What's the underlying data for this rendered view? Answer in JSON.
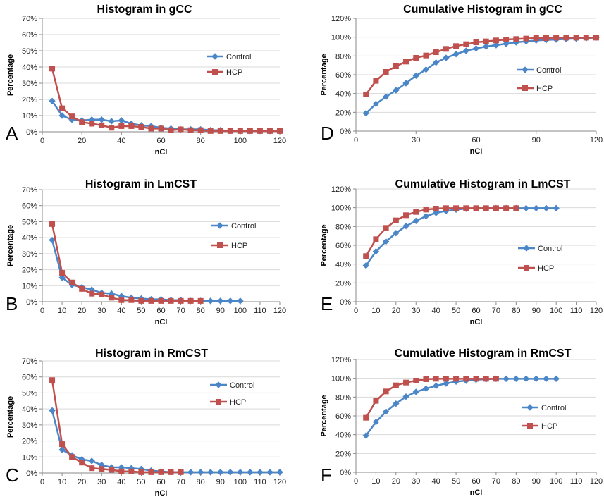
{
  "colors": {
    "control": "#4a86c8",
    "hcp": "#c0504d",
    "grid": "#d9d9d9",
    "axis": "#888888"
  },
  "chart_data": [
    {
      "panel_letter": "A",
      "type": "line",
      "title": "Histogram in gCC",
      "xlabel": "nCI",
      "ylabel": "Percentage",
      "xlim": [
        0,
        120
      ],
      "xticks": [
        "0",
        "20",
        "40",
        "60",
        "80",
        "100",
        "120"
      ],
      "ylim": [
        0,
        70
      ],
      "yticks": [
        "0%",
        "10%",
        "20%",
        "30%",
        "40%",
        "50%",
        "60%",
        "70%"
      ],
      "legend": "top-right",
      "series": [
        {
          "name": "Control",
          "marker": "diamond",
          "x": [
            5,
            10,
            15,
            20,
            25,
            30,
            35,
            40,
            45,
            50,
            55,
            60,
            65,
            70,
            75,
            80,
            85,
            90,
            95,
            100,
            105,
            110,
            115,
            120
          ],
          "y": [
            19,
            10,
            7.5,
            7,
            7.5,
            7.5,
            6.5,
            7,
            5,
            4,
            3.5,
            2.5,
            2,
            1.5,
            1.5,
            1.5,
            1,
            1,
            0.5,
            0.5,
            0.5,
            0.5,
            0.5,
            0.5
          ]
        },
        {
          "name": "HCP",
          "marker": "square",
          "x": [
            5,
            10,
            15,
            20,
            25,
            30,
            35,
            40,
            45,
            50,
            55,
            60,
            65,
            70,
            75,
            80,
            85,
            90,
            95,
            100,
            105,
            110,
            115,
            120
          ],
          "y": [
            39,
            14.5,
            9.5,
            6,
            5,
            4,
            2.5,
            3.5,
            3.5,
            3,
            2,
            2,
            1,
            1.5,
            1,
            1,
            0.5,
            0.5,
            0.5,
            0.5,
            0.5,
            0.5,
            0.5,
            0.5
          ]
        }
      ]
    },
    {
      "panel_letter": "D",
      "type": "line",
      "title": "Cumulative Histogram in gCC",
      "xlabel": "nCI",
      "ylabel": "Percentage",
      "xlim": [
        0,
        120
      ],
      "xticks": [
        "0",
        "30",
        "60",
        "90",
        "120"
      ],
      "ylim": [
        0,
        120
      ],
      "yticks": [
        "0%",
        "20%",
        "40%",
        "60%",
        "80%",
        "100%",
        "120%"
      ],
      "legend": "middle-right",
      "series": [
        {
          "name": "Control",
          "marker": "diamond",
          "x": [
            5,
            10,
            15,
            20,
            25,
            30,
            35,
            40,
            45,
            50,
            55,
            60,
            65,
            70,
            75,
            80,
            85,
            90,
            95,
            100,
            105,
            110,
            115,
            120
          ],
          "y": [
            19,
            29,
            36.5,
            43.5,
            51,
            59,
            65.5,
            73,
            78,
            82,
            85.5,
            88,
            90,
            91.5,
            93,
            94.5,
            95.5,
            96.5,
            97,
            97.5,
            98,
            98.5,
            99,
            99.5
          ]
        },
        {
          "name": "HCP",
          "marker": "square",
          "x": [
            5,
            10,
            15,
            20,
            25,
            30,
            35,
            40,
            45,
            50,
            55,
            60,
            65,
            70,
            75,
            80,
            85,
            90,
            95,
            100,
            105,
            110,
            115,
            120
          ],
          "y": [
            39,
            53.5,
            63,
            69,
            74,
            78,
            80.5,
            84,
            87.5,
            90.5,
            92.5,
            94.5,
            95.5,
            96.5,
            97.5,
            98,
            98.5,
            99,
            99,
            99.5,
            99.5,
            99.5,
            99.5,
            99.5
          ]
        }
      ]
    },
    {
      "panel_letter": "B",
      "type": "line",
      "title": "Histogram in LmCST",
      "xlabel": "nCI",
      "ylabel": "Percentage",
      "xlim": [
        0,
        120
      ],
      "xticks": [
        "0",
        "10",
        "20",
        "30",
        "40",
        "50",
        "60",
        "70",
        "80",
        "90",
        "100",
        "110",
        "120"
      ],
      "ylim": [
        0,
        70
      ],
      "yticks": [
        "0%",
        "10%",
        "20%",
        "30%",
        "40%",
        "50%",
        "60%",
        "70%"
      ],
      "legend": "middle-right",
      "series": [
        {
          "name": "Control",
          "marker": "diamond",
          "x": [
            5,
            10,
            15,
            20,
            25,
            30,
            35,
            40,
            45,
            50,
            55,
            60,
            65,
            70,
            75,
            80,
            85,
            90,
            95,
            100
          ],
          "y": [
            38.5,
            15,
            10.5,
            9,
            7.5,
            5.5,
            5,
            3.5,
            2.5,
            2,
            1.5,
            1.5,
            1,
            1,
            0.5,
            0.5,
            0.5,
            0.5,
            0.5,
            0.5
          ]
        },
        {
          "name": "HCP",
          "marker": "square",
          "x": [
            5,
            10,
            15,
            20,
            25,
            30,
            35,
            40,
            45,
            50,
            55,
            60,
            65,
            70,
            75,
            80
          ],
          "y": [
            48.5,
            18,
            12,
            8,
            5,
            4.5,
            2.5,
            1,
            1,
            0.5,
            0.5,
            0.5,
            0.5,
            0.5,
            0.5,
            0.5
          ]
        }
      ]
    },
    {
      "panel_letter": "E",
      "type": "line",
      "title": "Cumulative Histogram in LmCST",
      "xlabel": "nCI",
      "ylabel": "Percentage",
      "xlim": [
        0,
        120
      ],
      "xticks": [
        "0",
        "10",
        "20",
        "30",
        "40",
        "50",
        "60",
        "70",
        "80",
        "90",
        "100",
        "110",
        "120"
      ],
      "ylim": [
        0,
        120
      ],
      "yticks": [
        "0%",
        "20%",
        "40%",
        "60%",
        "80%",
        "100%",
        "120%"
      ],
      "legend": "middle-right",
      "series": [
        {
          "name": "Control",
          "marker": "diamond",
          "x": [
            5,
            10,
            15,
            20,
            25,
            30,
            35,
            40,
            45,
            50,
            55,
            60,
            65,
            70,
            75,
            80,
            85,
            90,
            95,
            100
          ],
          "y": [
            38.5,
            53.5,
            64,
            73,
            80.5,
            86,
            91,
            94.5,
            96.5,
            98,
            99,
            99.5,
            99.5,
            99.5,
            99.5,
            99.5,
            99.5,
            99.5,
            99.5,
            99.5
          ]
        },
        {
          "name": "HCP",
          "marker": "square",
          "x": [
            5,
            10,
            15,
            20,
            25,
            30,
            35,
            40,
            45,
            50,
            55,
            60,
            65,
            70,
            75,
            80
          ],
          "y": [
            48.5,
            66.5,
            78.5,
            86.5,
            92,
            95.5,
            98,
            99,
            99.5,
            99.5,
            99.5,
            99.5,
            99.5,
            99.5,
            99.5,
            99.5
          ]
        }
      ]
    },
    {
      "panel_letter": "C",
      "type": "line",
      "title": "Histogram in RmCST",
      "xlabel": "nCI",
      "ylabel": "Percentage",
      "xlim": [
        0,
        120
      ],
      "xticks": [
        "0",
        "10",
        "20",
        "30",
        "40",
        "50",
        "60",
        "70",
        "80",
        "90",
        "100",
        "110",
        "120"
      ],
      "ylim": [
        0,
        70
      ],
      "yticks": [
        "0%",
        "10%",
        "20%",
        "30%",
        "40%",
        "50%",
        "60%",
        "70%"
      ],
      "legend": "top-right",
      "series": [
        {
          "name": "Control",
          "marker": "diamond",
          "x": [
            5,
            10,
            15,
            20,
            25,
            30,
            35,
            40,
            45,
            50,
            55,
            60,
            65,
            70,
            75,
            80,
            85,
            90,
            95,
            100,
            105,
            110,
            115,
            120
          ],
          "y": [
            39,
            14.5,
            11,
            8.5,
            7.5,
            5,
            3.5,
            3.5,
            3,
            2.5,
            1.5,
            1,
            0.5,
            0.5,
            0.5,
            0.5,
            0.5,
            0.5,
            0.5,
            0.5,
            0.5,
            0.5,
            0.5,
            0.5
          ]
        },
        {
          "name": "HCP",
          "marker": "square",
          "x": [
            5,
            10,
            15,
            20,
            25,
            30,
            35,
            40,
            45,
            50,
            55,
            60,
            65,
            70
          ],
          "y": [
            58,
            18,
            10,
            6.5,
            3,
            2.5,
            2,
            1,
            1,
            0.5,
            0.5,
            0.5,
            0.5,
            0.5
          ]
        }
      ]
    },
    {
      "panel_letter": "F",
      "type": "line",
      "title": "Cumulative Histogram in RmCST",
      "xlabel": "nCI",
      "ylabel": "Percentage",
      "xlim": [
        0,
        120
      ],
      "xticks": [
        "0",
        "10",
        "20",
        "30",
        "40",
        "50",
        "60",
        "70",
        "80",
        "90",
        "100",
        "110",
        "120"
      ],
      "ylim": [
        0,
        120
      ],
      "yticks": [
        "0%",
        "20%",
        "40%",
        "60%",
        "80%",
        "100%",
        "120%"
      ],
      "legend": "middle-right",
      "series": [
        {
          "name": "Control",
          "marker": "diamond",
          "x": [
            5,
            10,
            15,
            20,
            25,
            30,
            35,
            40,
            45,
            50,
            55,
            60,
            65,
            70,
            75,
            80,
            85,
            90,
            95,
            100
          ],
          "y": [
            39,
            53.5,
            64.5,
            73,
            80.5,
            85.5,
            89,
            92,
            94.5,
            96.5,
            97.5,
            98.5,
            99,
            99.5,
            99.5,
            99.5,
            99.5,
            99.5,
            99.5,
            99.5
          ]
        },
        {
          "name": "HCP",
          "marker": "square",
          "x": [
            5,
            10,
            15,
            20,
            25,
            30,
            35,
            40,
            45,
            50,
            55,
            60,
            65,
            70
          ],
          "y": [
            58,
            76,
            86,
            92.5,
            95.5,
            97.5,
            99,
            99.5,
            99.5,
            99.5,
            99.5,
            99.5,
            99.5,
            99.5
          ]
        }
      ]
    }
  ]
}
